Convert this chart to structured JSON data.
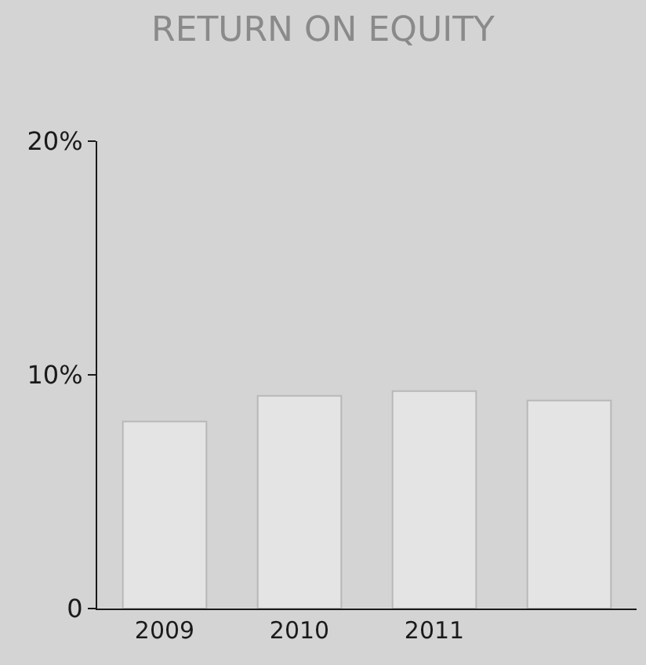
{
  "chart_data": {
    "type": "bar",
    "title": "RETURN ON EQUITY",
    "categories": [
      "2009",
      "2010",
      "2011",
      null
    ],
    "values": [
      8.0,
      9.1,
      9.3,
      8.9
    ],
    "color": "#e4e4e4",
    "ylim": [
      0,
      20
    ],
    "yticks": [
      0,
      {
        "value": 10,
        "label": "10%"
      },
      {
        "value": 20,
        "label": "20%"
      }
    ],
    "grid": false
  }
}
